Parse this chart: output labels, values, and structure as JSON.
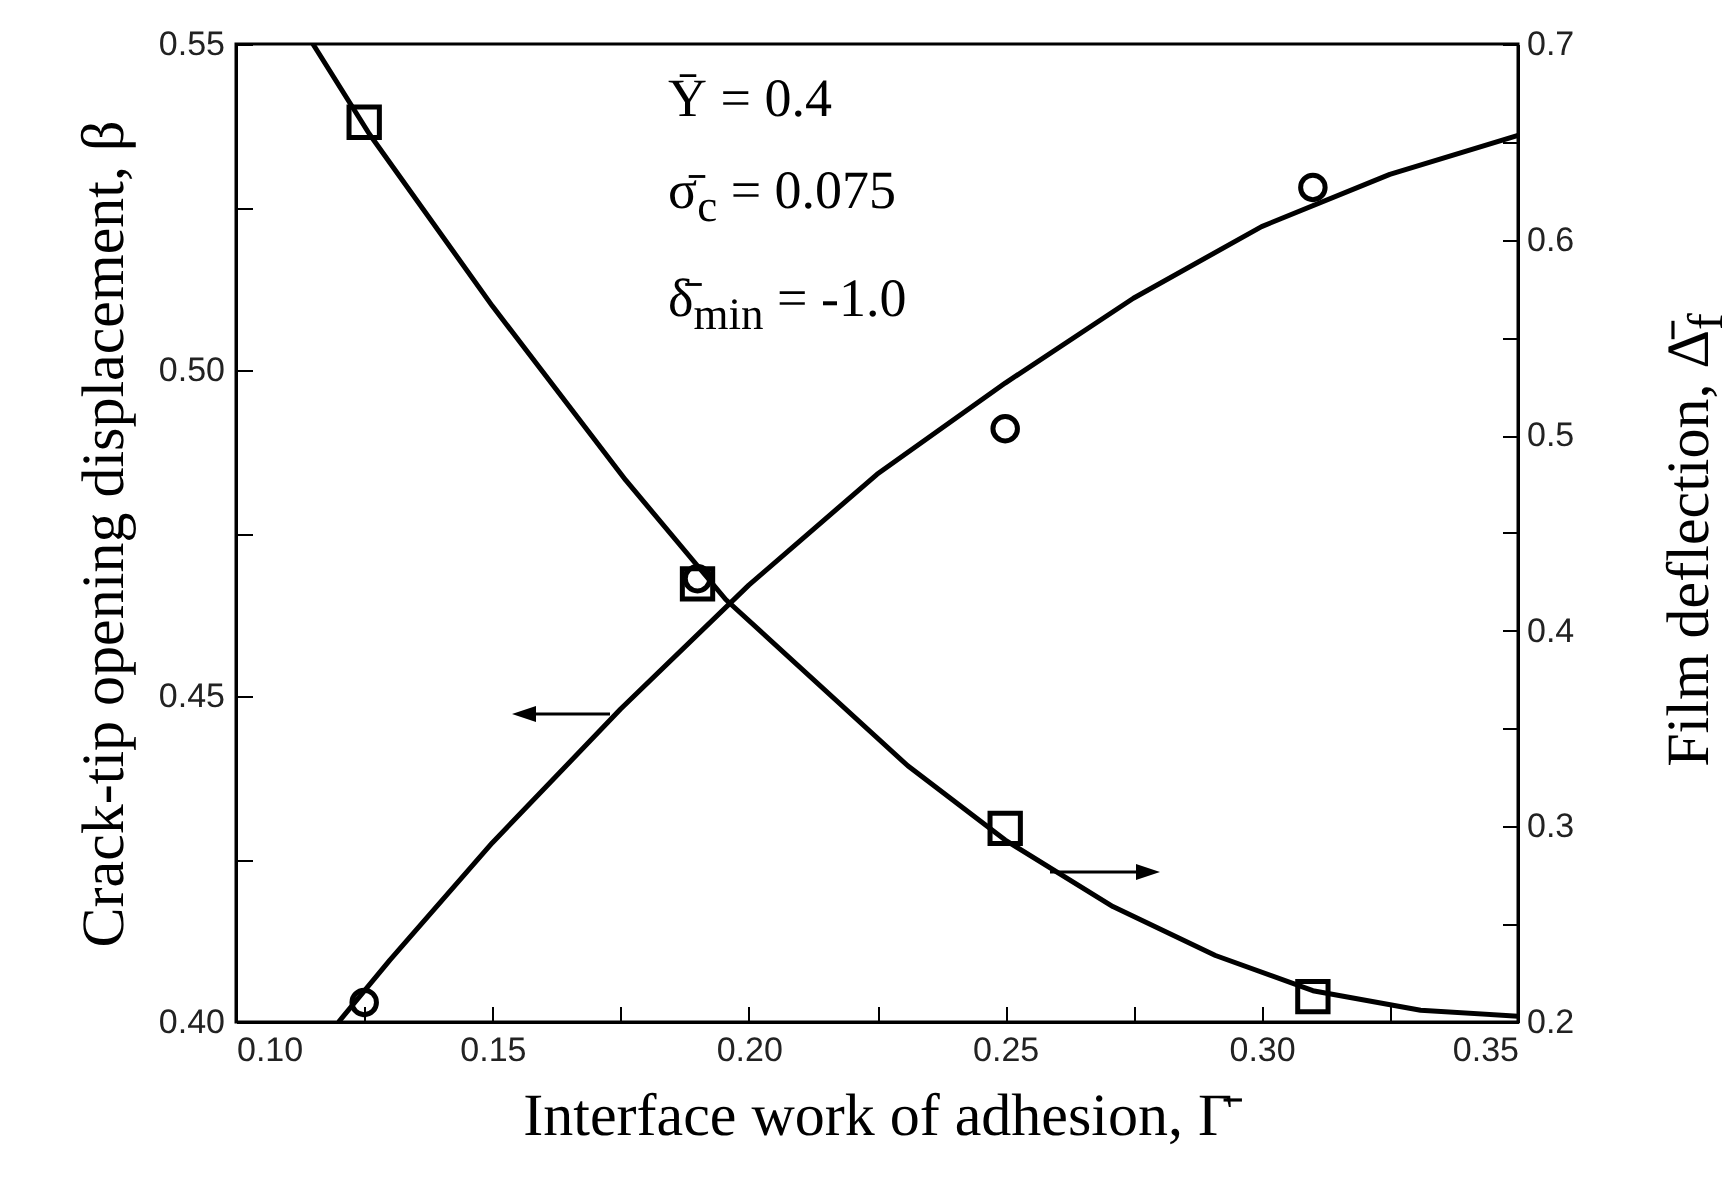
{
  "chart_data": {
    "type": "line",
    "xlabel": "Interface work of adhesion, Γ̄",
    "ylabel": "Crack-tip opening displacement, β",
    "y2label": "Film deflection, Δ̄$_{f}$",
    "xlim": [
      0.1,
      0.35
    ],
    "xticks": [
      {
        "value": 0.1,
        "label": "0.10"
      },
      {
        "value": 0.125,
        "label": null
      },
      {
        "value": 0.15,
        "label": "0.15"
      },
      {
        "value": 0.175,
        "label": null
      },
      {
        "value": 0.2,
        "label": "0.20"
      },
      {
        "value": 0.225,
        "label": null
      },
      {
        "value": 0.25,
        "label": "0.25"
      },
      {
        "value": 0.275,
        "label": null
      },
      {
        "value": 0.3,
        "label": "0.30"
      },
      {
        "value": 0.325,
        "label": null
      },
      {
        "value": 0.35,
        "label": "0.35"
      }
    ],
    "ylim": [
      0.4,
      0.55
    ],
    "yticks": [
      {
        "value": 0.4,
        "label": "0.40"
      },
      {
        "value": 0.425,
        "label": null
      },
      {
        "value": 0.45,
        "label": "0.45"
      },
      {
        "value": 0.475,
        "label": null
      },
      {
        "value": 0.5,
        "label": "0.50"
      },
      {
        "value": 0.525,
        "label": null
      },
      {
        "value": 0.55,
        "label": "0.55"
      }
    ],
    "y2lim": [
      0.2,
      0.7
    ],
    "y2ticks": [
      0.2,
      {
        "value": 0.25,
        "label": null
      },
      0.3,
      {
        "value": 0.35,
        "label": null
      },
      0.4,
      {
        "value": 0.45,
        "label": null
      },
      0.5,
      {
        "value": 0.55,
        "label": null
      },
      0.6,
      {
        "value": 0.65,
        "label": null
      },
      0.7
    ],
    "grid": false,
    "annotations": [
      "Ȳ = 0.4",
      "σ̄$_{c}$ = 0.075",
      "δ̄$_{min}$ = -1.0"
    ],
    "series": [
      {
        "color": "#000000",
        "line_style": "solid",
        "marker": "none",
        "x": [
          0.12,
          0.13,
          0.15,
          0.175,
          0.2,
          0.225,
          0.25,
          0.275,
          0.3,
          0.325,
          0.35
        ],
        "values": [
          0.4,
          0.4095,
          0.4275,
          0.448,
          0.467,
          0.484,
          0.498,
          0.511,
          0.522,
          0.53,
          0.536
        ]
      },
      {
        "type": "scatter",
        "color": "#000000",
        "marker": "circle",
        "x": [
          0.125,
          0.19,
          0.25,
          0.31
        ],
        "values": [
          0.403,
          0.468,
          0.491,
          0.528
        ]
      },
      {
        "axis": "y2",
        "color": "#000000",
        "line_style": "solid",
        "marker": "none",
        "x": [
          0.115,
          0.126,
          0.15,
          0.176,
          0.1955,
          0.231,
          0.25,
          0.271,
          0.291,
          0.31,
          0.331,
          0.35
        ],
        "values": [
          0.7,
          0.654,
          0.566,
          0.477,
          0.416,
          0.331,
          0.293,
          0.259,
          0.234,
          0.216,
          0.206,
          0.203
        ]
      },
      {
        "type": "scatter",
        "axis": "y2",
        "color": "#000000",
        "marker": "square",
        "x": [
          0.125,
          0.19,
          0.25,
          0.31
        ],
        "values": [
          0.66,
          0.424,
          0.299,
          0.213
        ]
      }
    ]
  }
}
